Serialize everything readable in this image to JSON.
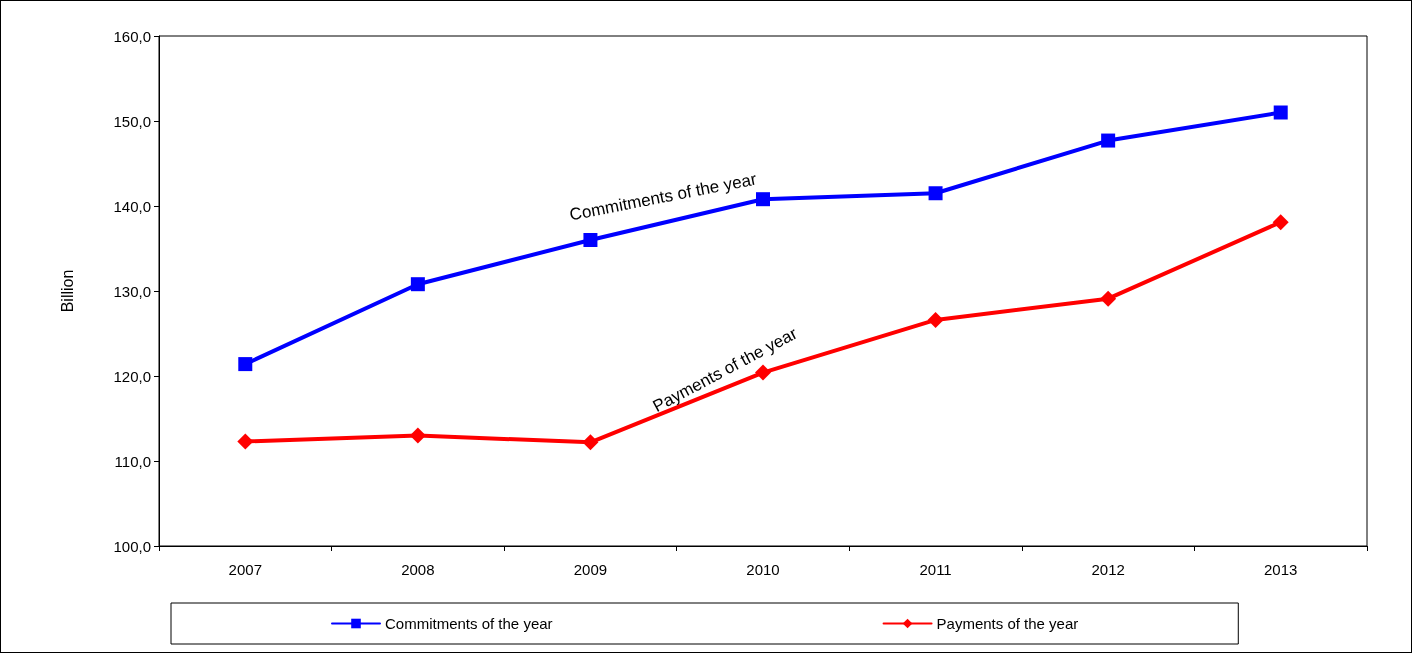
{
  "chart_data": {
    "type": "line",
    "ylabel": "Billion",
    "categories": [
      "2007",
      "2008",
      "2009",
      "2010",
      "2011",
      "2012",
      "2013"
    ],
    "series": [
      {
        "name": "Commitments of the year",
        "color": "#0000ff",
        "marker": "square",
        "values": [
          121.4,
          130.8,
          136.0,
          140.8,
          141.5,
          147.7,
          151.0
        ]
      },
      {
        "name": "Payments of the year",
        "color": "#ff0000",
        "marker": "diamond",
        "values": [
          112.3,
          113.0,
          112.2,
          120.4,
          126.6,
          129.1,
          138.1
        ]
      }
    ],
    "ylim": [
      100,
      160
    ],
    "yticks": [
      {
        "value": 100,
        "label": "100,0"
      },
      {
        "value": 110,
        "label": "110,0"
      },
      {
        "value": 120,
        "label": "120,0"
      },
      {
        "value": 130,
        "label": "130,0"
      },
      {
        "value": 140,
        "label": "140,0"
      },
      {
        "value": 150,
        "label": "150,0"
      },
      {
        "value": 160,
        "label": "160,0"
      }
    ],
    "annotations": [
      "Commitments of the year",
      "Payments of the year"
    ],
    "grid": false,
    "legend": "bottom",
    "line_style": "solid"
  }
}
